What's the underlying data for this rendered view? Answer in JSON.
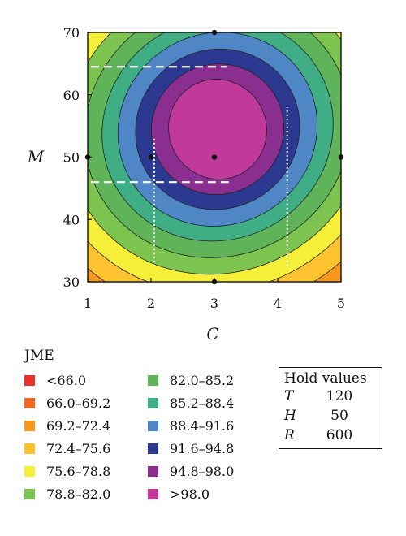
{
  "chart_data": {
    "type": "contour",
    "xlabel": "C",
    "ylabel": "M",
    "xlim": [
      1,
      5
    ],
    "ylim": [
      30,
      70
    ],
    "x_ticks": [
      "1",
      "2",
      "3",
      "4",
      "5"
    ],
    "y_ticks": [
      "30",
      "40",
      "50",
      "60",
      "70"
    ],
    "legend_title": "JME",
    "levels": [
      {
        "label": "<66.0",
        "color": "#e8322a"
      },
      {
        "label": "66.0–69.2",
        "color": "#f06a24"
      },
      {
        "label": "69.2–72.4",
        "color": "#f7981e"
      },
      {
        "label": "72.4–75.6",
        "color": "#fcc230"
      },
      {
        "label": "75.6–78.8",
        "color": "#f6ef3a"
      },
      {
        "label": "78.8–82.0",
        "color": "#7cc44f"
      },
      {
        "label": "82.0–85.2",
        "color": "#5fb359"
      },
      {
        "label": "85.2–88.4",
        "color": "#3fae84"
      },
      {
        "label": "88.4–91.6",
        "color": "#4f86c6"
      },
      {
        "label": "91.6–94.8",
        "color": "#2b3990"
      },
      {
        "label": "94.8–98.0",
        "color": "#8a2f8f"
      },
      {
        "label": ">98.0",
        "color": "#c0399b"
      }
    ],
    "optimum": {
      "x": 3.0,
      "y": 55.0
    },
    "design_points": [
      {
        "x": 3,
        "y": 70
      },
      {
        "x": 1,
        "y": 50
      },
      {
        "x": 2,
        "y": 50
      },
      {
        "x": 3,
        "y": 50
      },
      {
        "x": 5,
        "y": 50
      },
      {
        "x": 3,
        "y": 30
      }
    ],
    "reference_lines": {
      "dashed_horizontal": [
        {
          "y": 64.5,
          "x_from": 1.05,
          "x_to": 3.2
        },
        {
          "y": 46.0,
          "x_from": 1.05,
          "x_to": 3.3
        }
      ],
      "dotted_vertical": [
        {
          "x": 2.05,
          "y_from": 32.5,
          "y_to": 53.0
        },
        {
          "x": 4.15,
          "y_from": 32.5,
          "y_to": 58.0
        }
      ]
    }
  },
  "hold_values": {
    "title": "Hold values",
    "rows": [
      {
        "var": "T",
        "value": "120"
      },
      {
        "var": "H",
        "value": "50"
      },
      {
        "var": "R",
        "value": "600"
      }
    ]
  }
}
